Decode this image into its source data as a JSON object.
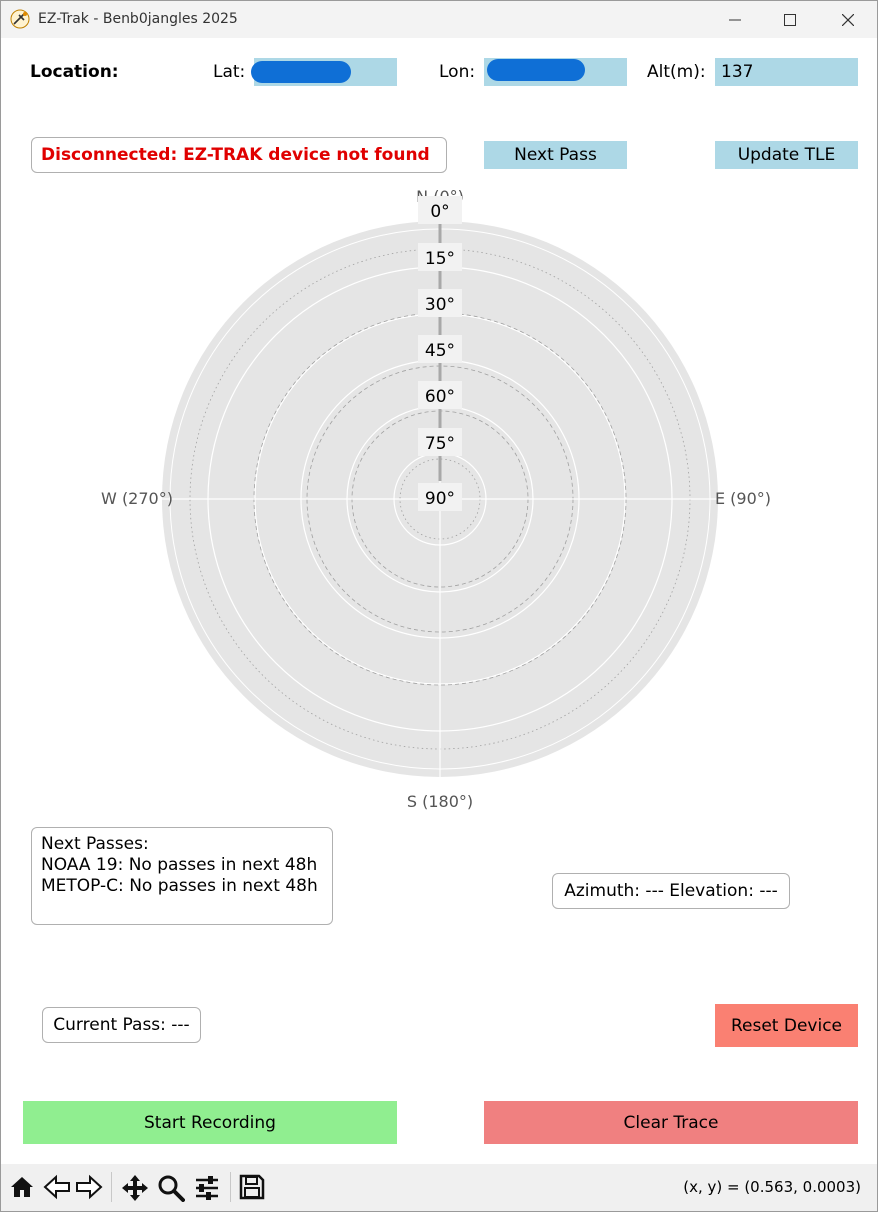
{
  "window": {
    "title": "EZ-Trak - Benb0jangles 2025"
  },
  "location": {
    "label": "Location:",
    "lat_label": "Lat:",
    "lat_value": "",
    "lon_label": "Lon:",
    "lon_value": "",
    "alt_label": "Alt(m):",
    "alt_value": "137"
  },
  "status": {
    "text": "Disconnected: EZ-TRAK device not found",
    "color": "#e00000"
  },
  "buttons": {
    "next_pass": "Next Pass",
    "update_tle": "Update TLE",
    "reset_device": "Reset Device",
    "start_recording": "Start Recording",
    "clear_trace": "Clear Trace"
  },
  "polar": {
    "north": "N (0°)",
    "east": "E (90°)",
    "south": "S (180°)",
    "west": "W (270°)",
    "elevation_ticks": [
      "0°",
      "15°",
      "30°",
      "45°",
      "60°",
      "75°",
      "90°"
    ]
  },
  "next_passes": {
    "title": "Next Passes:",
    "lines": [
      "NOAA 19: No passes in next 48h",
      "METOP-C: No passes in next 48h"
    ]
  },
  "az_el": "Azimuth: --- Elevation: ---",
  "current_pass": "Current Pass: ---",
  "toolbar": {
    "coords": "(x, y) = (0.563, 0.0003)",
    "icons": [
      "home-icon",
      "back-icon",
      "forward-icon",
      "pan-icon",
      "zoom-icon",
      "configure-icon",
      "save-icon"
    ]
  },
  "colors": {
    "field_bg": "#add8e6",
    "reset_bg": "#fa8072",
    "start_bg": "#90ee90",
    "clear_bg": "#f08080",
    "plot_bg": "#e5e5e5"
  }
}
